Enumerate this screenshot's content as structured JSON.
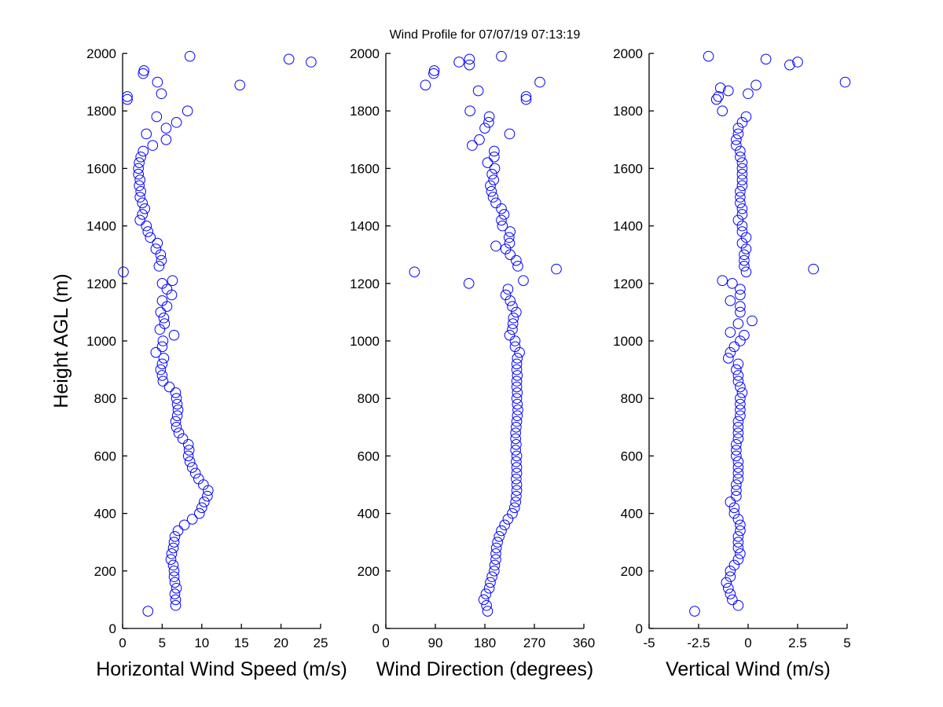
{
  "title": "Wind Profile for  07/07/19 07:13:19",
  "ylabel": "Height AGL (m)",
  "marker_color": "#0000ff",
  "chart_data": [
    {
      "type": "scatter",
      "xlabel": "Horizontal Wind Speed (m/s)",
      "ylabel": "Height AGL (m)",
      "xlim": [
        0,
        25
      ],
      "ylim": [
        0,
        2000
      ],
      "xticks": [
        0,
        5,
        10,
        15,
        20,
        25
      ],
      "yticks": [
        0,
        200,
        400,
        600,
        800,
        1000,
        1200,
        1400,
        1600,
        1800,
        2000
      ],
      "xticklabels": [
        "0",
        "5",
        "10",
        "15",
        "20",
        "25"
      ],
      "yticklabels": [
        "0",
        "200",
        "400",
        "600",
        "800",
        "1000",
        "1200",
        "1400",
        "1600",
        "1800",
        "2000"
      ],
      "grid": false,
      "points": [
        [
          3.2,
          60
        ],
        [
          6.7,
          80
        ],
        [
          6.7,
          100
        ],
        [
          6.6,
          120
        ],
        [
          6.8,
          140
        ],
        [
          6.6,
          160
        ],
        [
          6.5,
          180
        ],
        [
          6.5,
          200
        ],
        [
          6.4,
          220
        ],
        [
          6.1,
          240
        ],
        [
          6.2,
          260
        ],
        [
          6.4,
          280
        ],
        [
          6.5,
          300
        ],
        [
          6.6,
          320
        ],
        [
          7.0,
          340
        ],
        [
          7.8,
          360
        ],
        [
          8.8,
          380
        ],
        [
          9.7,
          400
        ],
        [
          10.0,
          420
        ],
        [
          10.3,
          440
        ],
        [
          10.7,
          460
        ],
        [
          10.8,
          480
        ],
        [
          10.2,
          500
        ],
        [
          9.6,
          520
        ],
        [
          9.2,
          540
        ],
        [
          8.8,
          560
        ],
        [
          8.5,
          580
        ],
        [
          8.3,
          600
        ],
        [
          8.4,
          620
        ],
        [
          8.3,
          640
        ],
        [
          7.6,
          660
        ],
        [
          7.1,
          680
        ],
        [
          6.8,
          700
        ],
        [
          6.7,
          720
        ],
        [
          6.9,
          740
        ],
        [
          7.0,
          760
        ],
        [
          6.9,
          780
        ],
        [
          6.8,
          800
        ],
        [
          6.7,
          820
        ],
        [
          5.9,
          840
        ],
        [
          5.1,
          860
        ],
        [
          5.0,
          880
        ],
        [
          4.8,
          900
        ],
        [
          5.0,
          920
        ],
        [
          5.2,
          940
        ],
        [
          4.2,
          960
        ],
        [
          5.0,
          980
        ],
        [
          5.1,
          1000
        ],
        [
          6.5,
          1020
        ],
        [
          4.7,
          1040
        ],
        [
          5.3,
          1060
        ],
        [
          5.2,
          1080
        ],
        [
          4.8,
          1100
        ],
        [
          5.6,
          1120
        ],
        [
          5.0,
          1140
        ],
        [
          6.2,
          1160
        ],
        [
          5.6,
          1180
        ],
        [
          5.0,
          1200
        ],
        [
          6.3,
          1210
        ],
        [
          0.1,
          1240
        ],
        [
          4.6,
          1260
        ],
        [
          4.9,
          1280
        ],
        [
          4.8,
          1300
        ],
        [
          4.2,
          1320
        ],
        [
          4.4,
          1340
        ],
        [
          3.5,
          1360
        ],
        [
          3.2,
          1380
        ],
        [
          3.0,
          1400
        ],
        [
          2.2,
          1420
        ],
        [
          2.5,
          1440
        ],
        [
          2.8,
          1460
        ],
        [
          2.5,
          1480
        ],
        [
          2.2,
          1500
        ],
        [
          2.3,
          1520
        ],
        [
          2.1,
          1540
        ],
        [
          2.2,
          1560
        ],
        [
          2.0,
          1580
        ],
        [
          2.0,
          1600
        ],
        [
          2.1,
          1620
        ],
        [
          2.3,
          1640
        ],
        [
          2.6,
          1660
        ],
        [
          3.8,
          1680
        ],
        [
          5.5,
          1700
        ],
        [
          3.0,
          1720
        ],
        [
          5.5,
          1740
        ],
        [
          6.8,
          1760
        ],
        [
          4.3,
          1780
        ],
        [
          8.2,
          1800
        ],
        [
          0.6,
          1840
        ],
        [
          0.6,
          1850
        ],
        [
          4.9,
          1860
        ],
        [
          14.8,
          1890
        ],
        [
          4.4,
          1900
        ],
        [
          2.6,
          1930
        ],
        [
          2.7,
          1940
        ],
        [
          23.8,
          1970
        ],
        [
          21.0,
          1980
        ],
        [
          8.5,
          1990
        ]
      ]
    },
    {
      "type": "scatter",
      "xlabel": "Wind Direction (degrees)",
      "xlim": [
        0,
        360
      ],
      "ylim": [
        0,
        2000
      ],
      "xticks": [
        0,
        90,
        180,
        270,
        360
      ],
      "yticks": [
        0,
        200,
        400,
        600,
        800,
        1000,
        1200,
        1400,
        1600,
        1800,
        2000
      ],
      "xticklabels": [
        "0",
        "90",
        "180",
        "270",
        "360"
      ],
      "yticklabels": [
        "0",
        "200",
        "400",
        "600",
        "800",
        "1000",
        "1200",
        "1400",
        "1600",
        "1800",
        "2000"
      ],
      "grid": false,
      "points": [
        [
          185,
          60
        ],
        [
          183,
          80
        ],
        [
          178,
          100
        ],
        [
          182,
          120
        ],
        [
          188,
          140
        ],
        [
          190,
          160
        ],
        [
          193,
          180
        ],
        [
          197,
          200
        ],
        [
          198,
          220
        ],
        [
          200,
          240
        ],
        [
          200,
          260
        ],
        [
          201,
          280
        ],
        [
          203,
          300
        ],
        [
          206,
          320
        ],
        [
          210,
          340
        ],
        [
          216,
          360
        ],
        [
          222,
          380
        ],
        [
          230,
          400
        ],
        [
          234,
          420
        ],
        [
          236,
          440
        ],
        [
          237,
          460
        ],
        [
          238,
          480
        ],
        [
          238,
          500
        ],
        [
          237,
          520
        ],
        [
          238,
          540
        ],
        [
          238,
          560
        ],
        [
          237,
          580
        ],
        [
          238,
          600
        ],
        [
          236,
          620
        ],
        [
          237,
          640
        ],
        [
          236,
          660
        ],
        [
          236,
          680
        ],
        [
          237,
          700
        ],
        [
          238,
          720
        ],
        [
          239,
          740
        ],
        [
          240,
          760
        ],
        [
          239,
          780
        ],
        [
          238,
          800
        ],
        [
          239,
          820
        ],
        [
          238,
          840
        ],
        [
          238,
          860
        ],
        [
          239,
          880
        ],
        [
          238,
          900
        ],
        [
          238,
          920
        ],
        [
          239,
          940
        ],
        [
          243,
          960
        ],
        [
          235,
          980
        ],
        [
          235,
          1000
        ],
        [
          225,
          1020
        ],
        [
          230,
          1040
        ],
        [
          231,
          1060
        ],
        [
          232,
          1080
        ],
        [
          237,
          1100
        ],
        [
          230,
          1120
        ],
        [
          226,
          1140
        ],
        [
          218,
          1160
        ],
        [
          222,
          1180
        ],
        [
          151,
          1200
        ],
        [
          250,
          1210
        ],
        [
          52,
          1240
        ],
        [
          310,
          1250
        ],
        [
          240,
          1260
        ],
        [
          237,
          1280
        ],
        [
          226,
          1300
        ],
        [
          218,
          1320
        ],
        [
          200,
          1330
        ],
        [
          225,
          1340
        ],
        [
          224,
          1360
        ],
        [
          226,
          1380
        ],
        [
          212,
          1400
        ],
        [
          210,
          1420
        ],
        [
          215,
          1440
        ],
        [
          210,
          1460
        ],
        [
          200,
          1480
        ],
        [
          195,
          1500
        ],
        [
          192,
          1520
        ],
        [
          190,
          1540
        ],
        [
          196,
          1560
        ],
        [
          193,
          1580
        ],
        [
          198,
          1600
        ],
        [
          185,
          1620
        ],
        [
          197,
          1640
        ],
        [
          197,
          1660
        ],
        [
          157,
          1680
        ],
        [
          170,
          1700
        ],
        [
          225,
          1720
        ],
        [
          180,
          1740
        ],
        [
          187,
          1760
        ],
        [
          188,
          1780
        ],
        [
          153,
          1800
        ],
        [
          255,
          1840
        ],
        [
          255,
          1850
        ],
        [
          168,
          1870
        ],
        [
          72,
          1890
        ],
        [
          280,
          1900
        ],
        [
          87,
          1930
        ],
        [
          88,
          1940
        ],
        [
          152,
          1960
        ],
        [
          133,
          1970
        ],
        [
          152,
          1980
        ],
        [
          210,
          1990
        ]
      ]
    },
    {
      "type": "scatter",
      "xlabel": "Vertical Wind (m/s)",
      "xlim": [
        -5,
        5
      ],
      "ylim": [
        0,
        2000
      ],
      "xticks": [
        -5,
        -2.5,
        0,
        2.5,
        5
      ],
      "yticks": [
        0,
        200,
        400,
        600,
        800,
        1000,
        1200,
        1400,
        1600,
        1800,
        2000
      ],
      "xticklabels": [
        "-5",
        "-2.5",
        "0",
        "2.5",
        "5"
      ],
      "yticklabels": [
        "0",
        "200",
        "400",
        "600",
        "800",
        "1000",
        "1200",
        "1400",
        "1600",
        "1800",
        "2000"
      ],
      "grid": false,
      "points": [
        [
          -2.7,
          60
        ],
        [
          -0.5,
          80
        ],
        [
          -0.8,
          100
        ],
        [
          -0.9,
          120
        ],
        [
          -1.0,
          140
        ],
        [
          -1.1,
          160
        ],
        [
          -0.9,
          180
        ],
        [
          -0.9,
          200
        ],
        [
          -0.7,
          220
        ],
        [
          -0.5,
          240
        ],
        [
          -0.4,
          260
        ],
        [
          -0.5,
          280
        ],
        [
          -0.5,
          300
        ],
        [
          -0.5,
          320
        ],
        [
          -0.4,
          340
        ],
        [
          -0.4,
          360
        ],
        [
          -0.5,
          380
        ],
        [
          -0.7,
          400
        ],
        [
          -0.7,
          420
        ],
        [
          -0.9,
          440
        ],
        [
          -0.6,
          460
        ],
        [
          -0.6,
          480
        ],
        [
          -0.6,
          500
        ],
        [
          -0.5,
          520
        ],
        [
          -0.5,
          540
        ],
        [
          -0.5,
          560
        ],
        [
          -0.5,
          580
        ],
        [
          -0.6,
          600
        ],
        [
          -0.6,
          620
        ],
        [
          -0.6,
          640
        ],
        [
          -0.5,
          660
        ],
        [
          -0.5,
          680
        ],
        [
          -0.5,
          700
        ],
        [
          -0.5,
          720
        ],
        [
          -0.4,
          740
        ],
        [
          -0.4,
          760
        ],
        [
          -0.4,
          780
        ],
        [
          -0.4,
          800
        ],
        [
          -0.3,
          820
        ],
        [
          -0.4,
          840
        ],
        [
          -0.5,
          860
        ],
        [
          -0.5,
          880
        ],
        [
          -0.6,
          900
        ],
        [
          -0.5,
          920
        ],
        [
          -1.0,
          940
        ],
        [
          -0.9,
          960
        ],
        [
          -0.7,
          980
        ],
        [
          -0.4,
          1000
        ],
        [
          -0.2,
          1020
        ],
        [
          -0.9,
          1030
        ],
        [
          -0.5,
          1060
        ],
        [
          0.2,
          1070
        ],
        [
          -0.4,
          1100
        ],
        [
          -0.4,
          1120
        ],
        [
          -0.9,
          1140
        ],
        [
          -0.4,
          1160
        ],
        [
          -0.4,
          1180
        ],
        [
          -0.8,
          1200
        ],
        [
          -1.3,
          1210
        ],
        [
          -0.1,
          1240
        ],
        [
          3.3,
          1250
        ],
        [
          -0.2,
          1260
        ],
        [
          -0.2,
          1280
        ],
        [
          -0.2,
          1300
        ],
        [
          -0.1,
          1320
        ],
        [
          -0.3,
          1340
        ],
        [
          -0.1,
          1360
        ],
        [
          -0.3,
          1380
        ],
        [
          -0.3,
          1400
        ],
        [
          -0.5,
          1420
        ],
        [
          -0.3,
          1440
        ],
        [
          -0.3,
          1460
        ],
        [
          -0.4,
          1480
        ],
        [
          -0.4,
          1500
        ],
        [
          -0.4,
          1520
        ],
        [
          -0.3,
          1540
        ],
        [
          -0.3,
          1560
        ],
        [
          -0.3,
          1580
        ],
        [
          -0.3,
          1600
        ],
        [
          -0.3,
          1620
        ],
        [
          -0.4,
          1640
        ],
        [
          -0.4,
          1660
        ],
        [
          -0.6,
          1680
        ],
        [
          -0.6,
          1700
        ],
        [
          -0.5,
          1720
        ],
        [
          -0.5,
          1740
        ],
        [
          -0.3,
          1760
        ],
        [
          -0.1,
          1780
        ],
        [
          -1.3,
          1800
        ],
        [
          -1.6,
          1840
        ],
        [
          -1.5,
          1850
        ],
        [
          0.0,
          1860
        ],
        [
          -1.0,
          1870
        ],
        [
          -1.4,
          1880
        ],
        [
          0.4,
          1890
        ],
        [
          4.9,
          1900
        ],
        [
          2.1,
          1960
        ],
        [
          2.5,
          1970
        ],
        [
          0.9,
          1980
        ],
        [
          -2.0,
          1990
        ]
      ]
    }
  ]
}
